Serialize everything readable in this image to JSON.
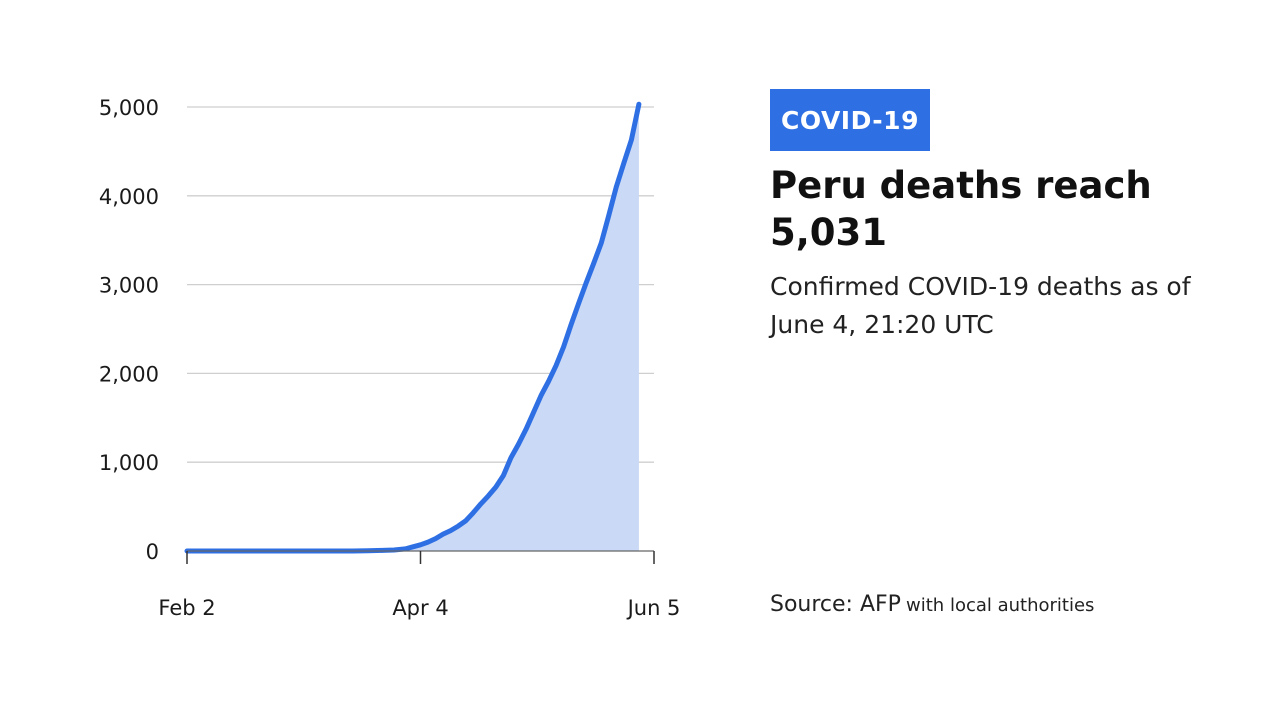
{
  "badge": "COVID-19",
  "headline": "Peru deaths reach 5,031",
  "subtitle": "Confirmed COVID-19 deaths as of June 4, 21:20 UTC",
  "source": {
    "label": "Source: AFP",
    "detail": "with local authorities"
  },
  "colors": {
    "accent": "#2f6fe4",
    "area_fill": "#c9d9f6",
    "gridline": "#cfcfcf"
  },
  "chart_data": {
    "type": "area",
    "title": "Peru deaths reach 5,031",
    "xlabel": "",
    "ylabel": "",
    "x_range_days": [
      0,
      124
    ],
    "ylim": [
      0,
      5000
    ],
    "grid": true,
    "y_ticks": [
      {
        "value": 0,
        "label": "0"
      },
      {
        "value": 1000,
        "label": "1,000"
      },
      {
        "value": 2000,
        "label": "2,000"
      },
      {
        "value": 3000,
        "label": "3,000"
      },
      {
        "value": 4000,
        "label": "4,000"
      },
      {
        "value": 5000,
        "label": "5,000"
      }
    ],
    "x_ticks": [
      {
        "day": 0,
        "label": "Feb 2"
      },
      {
        "day": 62,
        "label": "Apr 4"
      },
      {
        "day": 124,
        "label": "Jun 5"
      }
    ],
    "series": [
      {
        "name": "Confirmed COVID-19 deaths",
        "points": [
          [
            0,
            0
          ],
          [
            44,
            0
          ],
          [
            48,
            2
          ],
          [
            52,
            7
          ],
          [
            55,
            11
          ],
          [
            58,
            24
          ],
          [
            60,
            47
          ],
          [
            62,
            70
          ],
          [
            64,
            100
          ],
          [
            66,
            140
          ],
          [
            68,
            190
          ],
          [
            70,
            230
          ],
          [
            72,
            280
          ],
          [
            74,
            340
          ],
          [
            76,
            430
          ],
          [
            78,
            530
          ],
          [
            80,
            620
          ],
          [
            82,
            720
          ],
          [
            84,
            850
          ],
          [
            86,
            1050
          ],
          [
            88,
            1200
          ],
          [
            90,
            1370
          ],
          [
            92,
            1560
          ],
          [
            94,
            1750
          ],
          [
            96,
            1910
          ],
          [
            98,
            2090
          ],
          [
            100,
            2300
          ],
          [
            102,
            2550
          ],
          [
            104,
            2790
          ],
          [
            106,
            3020
          ],
          [
            108,
            3240
          ],
          [
            110,
            3470
          ],
          [
            112,
            3780
          ],
          [
            114,
            4100
          ],
          [
            116,
            4370
          ],
          [
            118,
            4630
          ],
          [
            120,
            5031
          ]
        ]
      }
    ]
  }
}
